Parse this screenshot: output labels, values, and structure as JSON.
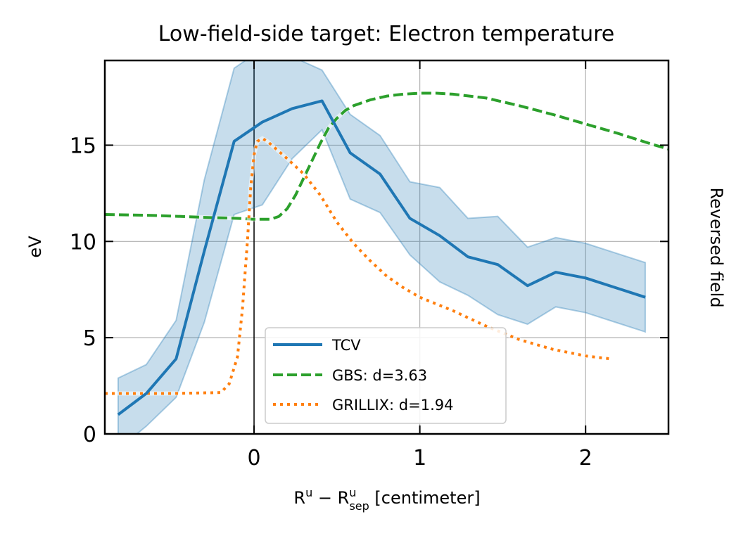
{
  "chart_data": {
    "type": "line",
    "title": "Low-field-side target: Electron temperature",
    "xlabel": {
      "base": "R",
      "sup1": "u",
      "minus": " − ",
      "base2": "R",
      "sup2": "u",
      "sub2": "sep",
      "unit": " [centimeter]"
    },
    "ylabel": "eV",
    "side_label": "Reversed field",
    "xlim": [
      -0.9,
      2.5
    ],
    "ylim": [
      0,
      19.4
    ],
    "xticks": [
      0,
      1,
      2
    ],
    "xtick_labels": [
      "0",
      "1",
      "2"
    ],
    "yticks": [
      0,
      5,
      10,
      15
    ],
    "ytick_labels": [
      "0",
      "5",
      "10",
      "15"
    ],
    "grid": true,
    "vline_at": 0,
    "legend_position": "lower-center",
    "series": [
      {
        "name": "TCV",
        "color": "#1f77b4",
        "style": "solid",
        "x": [
          -0.82,
          -0.65,
          -0.47,
          -0.3,
          -0.12,
          0.05,
          0.23,
          0.41,
          0.58,
          0.76,
          0.94,
          1.12,
          1.29,
          1.47,
          1.65,
          1.82,
          2.0,
          2.18,
          2.36
        ],
        "y": [
          1.0,
          2.1,
          3.9,
          9.5,
          15.2,
          16.2,
          16.9,
          17.3,
          14.6,
          13.5,
          11.2,
          10.3,
          9.2,
          8.8,
          7.7,
          8.4,
          8.1,
          7.6,
          7.1
        ],
        "band_upper": [
          2.9,
          3.6,
          5.9,
          13.2,
          19.0,
          20.0,
          19.6,
          18.9,
          16.6,
          15.5,
          13.1,
          12.8,
          11.2,
          11.3,
          9.7,
          10.2,
          9.9,
          9.4,
          8.9
        ],
        "band_lower": [
          -0.8,
          0.4,
          1.9,
          5.8,
          11.4,
          11.9,
          14.3,
          15.8,
          12.2,
          11.5,
          9.3,
          7.9,
          7.2,
          6.2,
          5.7,
          6.6,
          6.3,
          5.8,
          5.3
        ]
      },
      {
        "name": "GBS: d=3.63",
        "color": "#2ca02c",
        "style": "dashed",
        "x": [
          -0.9,
          -0.6,
          -0.3,
          -0.1,
          0.0,
          0.1,
          0.15,
          0.2,
          0.25,
          0.3,
          0.35,
          0.4,
          0.45,
          0.5,
          0.55,
          0.6,
          0.7,
          0.8,
          0.9,
          1.0,
          1.1,
          1.2,
          1.4,
          1.6,
          1.8,
          2.0,
          2.2,
          2.4,
          2.5
        ],
        "y": [
          11.4,
          11.35,
          11.25,
          11.2,
          11.15,
          11.15,
          11.3,
          11.7,
          12.4,
          13.3,
          14.2,
          15.1,
          15.9,
          16.4,
          16.8,
          17.05,
          17.35,
          17.55,
          17.65,
          17.7,
          17.7,
          17.65,
          17.45,
          17.05,
          16.6,
          16.1,
          15.6,
          15.05,
          14.8
        ]
      },
      {
        "name": "GRILLIX: d=1.94",
        "color": "#ff7f0e",
        "style": "dotted",
        "x": [
          -0.9,
          -0.5,
          -0.2,
          -0.15,
          -0.1,
          -0.07,
          -0.04,
          -0.02,
          0.0,
          0.02,
          0.05,
          0.08,
          0.12,
          0.2,
          0.3,
          0.4,
          0.5,
          0.6,
          0.7,
          0.8,
          0.9,
          1.0,
          1.2,
          1.4,
          1.6,
          1.8,
          2.0,
          2.15
        ],
        "y": [
          2.1,
          2.1,
          2.15,
          2.6,
          4.0,
          6.5,
          10.0,
          12.8,
          14.5,
          15.2,
          15.35,
          15.2,
          14.9,
          14.3,
          13.5,
          12.4,
          11.0,
          9.9,
          9.0,
          8.2,
          7.6,
          7.1,
          6.4,
          5.6,
          4.9,
          4.4,
          4.05,
          3.9
        ]
      }
    ]
  }
}
